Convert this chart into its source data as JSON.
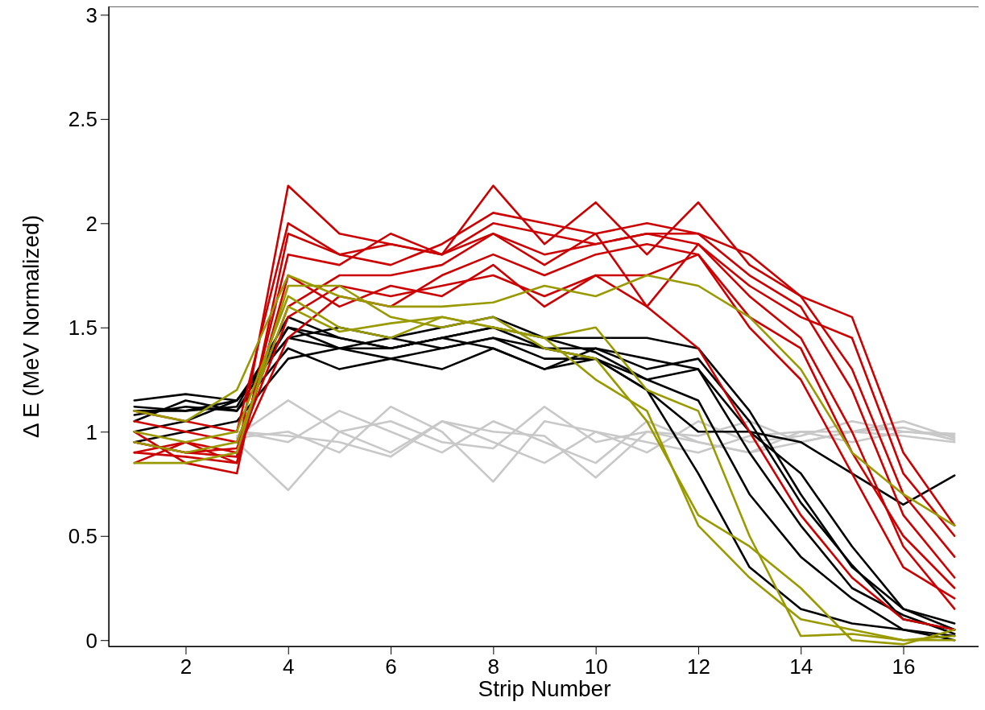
{
  "chart_data": {
    "type": "line",
    "xlabel": "Strip Number",
    "ylabel": "Δ E (MeV Normalized)",
    "x": [
      1,
      2,
      3,
      4,
      5,
      6,
      7,
      8,
      9,
      10,
      11,
      12,
      13,
      14,
      15,
      16,
      17
    ],
    "xlim": [
      0.5,
      17.5
    ],
    "xticks": [
      2,
      4,
      6,
      8,
      10,
      12,
      14,
      16
    ],
    "ylim": [
      -0.03,
      3.04
    ],
    "yticks": [
      0,
      {
        "value": 0.5,
        "label": "0.5"
      },
      1,
      {
        "value": 1.5,
        "label": "1.5"
      },
      2,
      {
        "value": 2.5,
        "label": "2.5"
      },
      3
    ],
    "grid": false,
    "marker": "none",
    "line_style": "solid",
    "series": [
      {
        "color": "#c8c8c8",
        "values": [
          null,
          null,
          0.95,
          0.72,
          1.0,
          1.05,
          0.95,
          0.92,
          1.12,
          0.95,
          1.0,
          0.95,
          0.9,
          0.95,
          1.0,
          1.05,
          0.97
        ]
      },
      {
        "color": "#c8c8c8",
        "values": [
          null,
          null,
          0.98,
          1.15,
          1.0,
          0.9,
          1.05,
          0.95,
          0.85,
          1.0,
          0.95,
          0.9,
          0.98,
          1.0,
          0.95,
          1.0,
          0.98
        ]
      },
      {
        "color": "#c8c8c8",
        "values": [
          null,
          null,
          1.0,
          0.95,
          1.1,
          1.0,
          0.9,
          1.05,
          0.95,
          0.85,
          1.05,
          0.95,
          0.9,
          1.0,
          1.0,
          1.02,
          0.96
        ]
      },
      {
        "color": "#c8c8c8",
        "values": [
          null,
          null,
          0.97,
          1.0,
          0.9,
          1.12,
          1.0,
          0.76,
          1.05,
          1.0,
          0.9,
          1.05,
          0.95,
          0.98,
          1.05,
          1.0,
          0.99
        ]
      },
      {
        "color": "#c8c8c8",
        "values": [
          null,
          null,
          1.0,
          0.98,
          0.95,
          0.88,
          1.05,
          1.0,
          0.98,
          0.78,
          1.0,
          0.98,
          1.05,
          0.95,
          1.0,
          0.98,
          0.95
        ]
      },
      {
        "color": "#000000",
        "values": [
          1.15,
          1.18,
          1.15,
          1.45,
          1.5,
          1.45,
          1.5,
          1.55,
          1.45,
          1.45,
          1.45,
          1.4,
          1.1,
          0.7,
          0.35,
          0.15,
          0.08
        ]
      },
      {
        "color": "#000000",
        "values": [
          1.1,
          1.1,
          1.12,
          1.55,
          1.45,
          1.4,
          1.45,
          1.5,
          1.4,
          1.4,
          1.3,
          1.35,
          1.05,
          0.66,
          0.36,
          0.1,
          0.05
        ]
      },
      {
        "color": "#000000",
        "values": [
          1.05,
          1.15,
          1.1,
          1.4,
          1.3,
          1.35,
          1.4,
          1.45,
          1.35,
          1.35,
          1.2,
          0.8,
          0.35,
          0.15,
          0.08,
          0.05,
          0.02
        ]
      },
      {
        "color": "#000000",
        "values": [
          1.0,
          1.05,
          1.15,
          1.5,
          1.4,
          1.35,
          1.3,
          1.4,
          1.3,
          1.4,
          1.35,
          1.3,
          1.0,
          0.8,
          0.45,
          0.15,
          0.05
        ]
      },
      {
        "color": "#000000",
        "values": [
          1.12,
          1.1,
          1.15,
          1.45,
          1.4,
          1.45,
          1.4,
          1.45,
          1.4,
          1.35,
          1.2,
          1.0,
          1.0,
          0.95,
          0.8,
          0.65,
          0.79
        ]
      },
      {
        "color": "#000000",
        "values": [
          0.95,
          1.0,
          1.05,
          1.35,
          1.4,
          1.4,
          1.45,
          1.4,
          1.3,
          1.35,
          1.25,
          1.15,
          0.7,
          0.4,
          0.2,
          0.05,
          0.0
        ]
      },
      {
        "color": "#000000",
        "values": [
          1.08,
          1.12,
          1.1,
          1.5,
          1.45,
          1.4,
          1.45,
          1.5,
          1.45,
          1.38,
          1.25,
          1.3,
          0.9,
          0.55,
          0.25,
          0.12,
          0.03
        ]
      },
      {
        "color": "#cc0000",
        "values": [
          0.95,
          0.9,
          0.88,
          2.18,
          1.95,
          1.9,
          1.85,
          2.0,
          1.95,
          1.9,
          1.95,
          1.95,
          1.75,
          1.6,
          1.2,
          0.6,
          0.3
        ]
      },
      {
        "color": "#cc0000",
        "values": [
          0.9,
          0.88,
          0.85,
          1.85,
          1.8,
          1.95,
          1.85,
          2.18,
          1.9,
          2.1,
          1.85,
          2.1,
          1.8,
          1.65,
          1.3,
          0.7,
          0.4
        ]
      },
      {
        "color": "#cc0000",
        "values": [
          1.05,
          1.0,
          0.95,
          1.6,
          1.75,
          1.75,
          1.8,
          1.95,
          1.8,
          1.95,
          1.6,
          1.9,
          1.65,
          1.45,
          1.0,
          0.45,
          0.15
        ]
      },
      {
        "color": "#cc0000",
        "values": [
          0.85,
          0.95,
          0.9,
          1.45,
          1.65,
          1.6,
          1.75,
          1.85,
          1.75,
          1.85,
          1.9,
          1.85,
          1.5,
          1.25,
          0.8,
          0.35,
          0.2
        ]
      },
      {
        "color": "#cc0000",
        "values": [
          1.0,
          0.85,
          0.8,
          1.95,
          1.85,
          1.8,
          1.9,
          2.05,
          2.0,
          1.95,
          2.0,
          1.95,
          1.85,
          1.65,
          1.55,
          0.9,
          0.55
        ]
      },
      {
        "color": "#cc0000",
        "values": [
          0.95,
          0.9,
          0.92,
          1.55,
          1.7,
          1.65,
          1.7,
          1.75,
          1.65,
          1.75,
          1.6,
          1.4,
          1.0,
          0.6,
          0.3,
          0.1,
          0.05
        ]
      },
      {
        "color": "#cc0000",
        "values": [
          1.1,
          1.05,
          1.0,
          2.0,
          1.85,
          1.9,
          1.85,
          1.95,
          1.85,
          1.9,
          1.95,
          1.9,
          1.7,
          1.55,
          1.45,
          0.8,
          0.5
        ]
      },
      {
        "color": "#cc0000",
        "values": [
          0.9,
          0.95,
          0.85,
          1.75,
          1.6,
          1.7,
          1.65,
          1.8,
          1.6,
          1.75,
          1.75,
          1.85,
          1.55,
          1.4,
          0.9,
          0.5,
          0.25
        ]
      },
      {
        "color": "#999900",
        "values": [
          1.1,
          1.05,
          1.2,
          1.75,
          1.65,
          1.6,
          1.6,
          1.62,
          1.7,
          1.65,
          1.75,
          1.7,
          1.55,
          1.3,
          0.9,
          0.7,
          0.55
        ]
      },
      {
        "color": "#999900",
        "values": [
          1.0,
          0.95,
          1.0,
          1.65,
          1.5,
          1.45,
          1.55,
          1.5,
          1.45,
          1.5,
          1.2,
          1.1,
          0.5,
          0.02,
          0.03,
          0.0,
          0.02
        ]
      },
      {
        "color": "#999900",
        "values": [
          0.85,
          0.85,
          0.9,
          1.7,
          1.7,
          1.55,
          1.5,
          1.55,
          1.4,
          1.35,
          1.05,
          0.6,
          0.45,
          0.25,
          0.0,
          -0.02,
          0.05
        ]
      },
      {
        "color": "#999900",
        "values": [
          0.95,
          0.9,
          0.95,
          1.6,
          1.48,
          1.52,
          1.55,
          1.5,
          1.45,
          1.25,
          1.1,
          0.55,
          0.3,
          0.1,
          0.05,
          0.0,
          0.0
        ]
      }
    ]
  }
}
